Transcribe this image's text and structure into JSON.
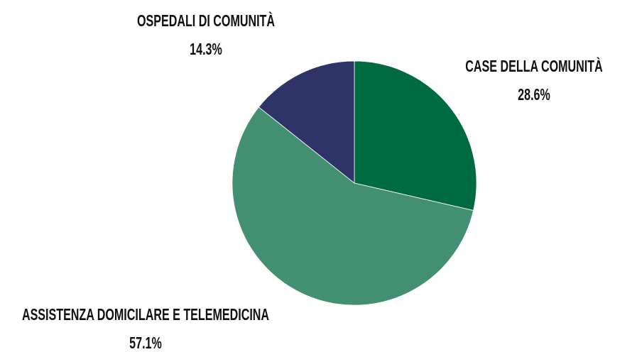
{
  "chart_data": {
    "type": "pie",
    "categories": [
      "CASE DELLA COMUNITÀ",
      "ASSISTENZA DOMICILARE E TELEMEDICINA",
      "OSPEDALI DI COMUNITÀ"
    ],
    "values": [
      28.6,
      57.1,
      14.3
    ],
    "value_labels": [
      "28.6%",
      "57.1%",
      "14.3%"
    ],
    "colors": [
      "#006b40",
      "#428f72",
      "#2e3368"
    ]
  }
}
